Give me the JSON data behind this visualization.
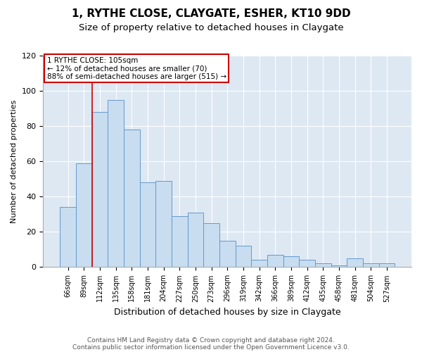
{
  "title": "1, RYTHE CLOSE, CLAYGATE, ESHER, KT10 9DD",
  "subtitle": "Size of property relative to detached houses in Claygate",
  "xlabel": "Distribution of detached houses by size in Claygate",
  "ylabel": "Number of detached properties",
  "bar_color": "#c8ddef",
  "bar_edge_color": "#6699cc",
  "background_color": "#dde8f3",
  "grid_color": "#ffffff",
  "categories": [
    "66sqm",
    "89sqm",
    "112sqm",
    "135sqm",
    "158sqm",
    "181sqm",
    "204sqm",
    "227sqm",
    "250sqm",
    "273sqm",
    "296sqm",
    "319sqm",
    "342sqm",
    "366sqm",
    "389sqm",
    "412sqm",
    "435sqm",
    "458sqm",
    "481sqm",
    "504sqm",
    "527sqm"
  ],
  "values": [
    34,
    59,
    88,
    95,
    78,
    48,
    49,
    29,
    31,
    25,
    15,
    12,
    4,
    7,
    6,
    4,
    2,
    1,
    5,
    2,
    2
  ],
  "ylim": [
    0,
    120
  ],
  "yticks": [
    0,
    20,
    40,
    60,
    80,
    100,
    120
  ],
  "vline_index": 2,
  "annotation_title": "1 RYTHE CLOSE: 105sqm",
  "annotation_line1": "← 12% of detached houses are smaller (70)",
  "annotation_line2": "88% of semi-detached houses are larger (515) →",
  "footnote1": "Contains HM Land Registry data © Crown copyright and database right 2024.",
  "footnote2": "Contains public sector information licensed under the Open Government Licence v3.0.",
  "title_fontsize": 11,
  "subtitle_fontsize": 9.5,
  "xlabel_fontsize": 9,
  "ylabel_fontsize": 8,
  "annotation_box_color": "#cc0000",
  "vline_color": "#cc0000"
}
